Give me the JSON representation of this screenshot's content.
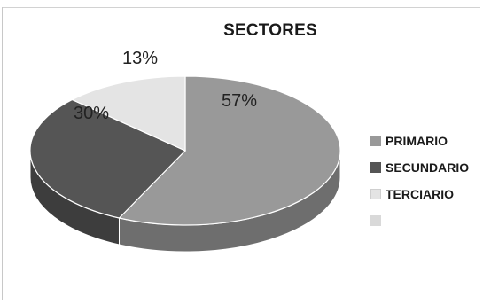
{
  "chart_data": {
    "type": "pie",
    "title": "SECTORES",
    "categories": [
      "PRIMARIO",
      "SECUNDARIO",
      "TERCIARIO"
    ],
    "values": [
      57,
      30,
      13
    ],
    "data_labels": [
      "57%",
      "30%",
      "13%"
    ],
    "colors": [
      "#999999",
      "#555555",
      "#e4e4e4"
    ],
    "extra_legend_swatch_color": "#d9d9d9",
    "three_d": true,
    "legend_position": "right"
  }
}
